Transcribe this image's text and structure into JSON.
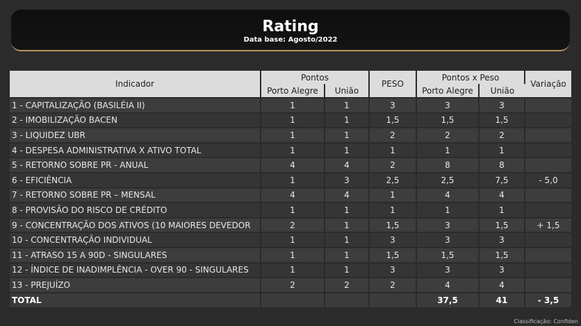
{
  "header": {
    "title": "Rating",
    "subtitle": "Data base: Agosto/2022"
  },
  "table": {
    "headers": {
      "indicador": "Indicador",
      "pontos": "Pontos",
      "peso": "PESO",
      "pontos_x_peso": "Pontos x Peso",
      "variacao": "Variação",
      "porto_alegre": "Porto Alegre",
      "uniao": "União"
    },
    "rows": [
      {
        "indicador": "1 - CAPITALIZAÇÃO (BASILÉIA II)",
        "pa": "1",
        "uniao": "1",
        "peso": "3",
        "pxp_pa": "3",
        "pxp_uniao": "3",
        "variacao": ""
      },
      {
        "indicador": "2 - IMOBILIZAÇÃO BACEN",
        "pa": "1",
        "uniao": "1",
        "peso": "1,5",
        "pxp_pa": "1,5",
        "pxp_uniao": "1,5",
        "variacao": ""
      },
      {
        "indicador": "3 - LIQUIDEZ UBR",
        "pa": "1",
        "uniao": "1",
        "peso": "2",
        "pxp_pa": "2",
        "pxp_uniao": "2",
        "variacao": ""
      },
      {
        "indicador": "4 - DESPESA ADMINISTRATIVA X ATIVO TOTAL",
        "pa": "1",
        "uniao": "1",
        "peso": "1",
        "pxp_pa": "1",
        "pxp_uniao": "1",
        "variacao": ""
      },
      {
        "indicador": "5 - RETORNO SOBRE PR - ANUAL",
        "pa": "4",
        "uniao": "4",
        "peso": "2",
        "pxp_pa": "8",
        "pxp_uniao": "8",
        "variacao": ""
      },
      {
        "indicador": "6 - EFICIÊNCIA",
        "pa": "1",
        "uniao": "3",
        "peso": "2,5",
        "pxp_pa": "2,5",
        "pxp_uniao": "7,5",
        "variacao": "- 5,0"
      },
      {
        "indicador": "7 - RETORNO SOBRE PR – MENSAL",
        "pa": "4",
        "uniao": "4",
        "peso": "1",
        "pxp_pa": "4",
        "pxp_uniao": "4",
        "variacao": ""
      },
      {
        "indicador": "8 - PROVISÃO DO RISCO DE CRÉDITO",
        "pa": "1",
        "uniao": "1",
        "peso": "1",
        "pxp_pa": "1",
        "pxp_uniao": "1",
        "variacao": ""
      },
      {
        "indicador": "9 - CONCENTRAÇÃO DOS ATIVOS (10 MAIORES DEVEDOR",
        "pa": "2",
        "uniao": "1",
        "peso": "1,5",
        "pxp_pa": "3",
        "pxp_uniao": "1,5",
        "variacao": "+ 1,5"
      },
      {
        "indicador": "10 - CONCENTRAÇÃO INDIVIDUAL",
        "pa": "1",
        "uniao": "1",
        "peso": "3",
        "pxp_pa": "3",
        "pxp_uniao": "3",
        "variacao": ""
      },
      {
        "indicador": "11 - ATRASO 15 A 90D - SINGULARES",
        "pa": "1",
        "uniao": "1",
        "peso": "1,5",
        "pxp_pa": "1,5",
        "pxp_uniao": "1,5",
        "variacao": ""
      },
      {
        "indicador": "12 - ÍNDICE DE INADIMPLÊNCIA - OVER 90 - SINGULARES",
        "pa": "1",
        "uniao": "1",
        "peso": "3",
        "pxp_pa": "3",
        "pxp_uniao": "3",
        "variacao": ""
      },
      {
        "indicador": "13 - PREJUÍZO",
        "pa": "2",
        "uniao": "2",
        "peso": "2",
        "pxp_pa": "4",
        "pxp_uniao": "4",
        "variacao": ""
      }
    ],
    "total": {
      "label": "TOTAL",
      "pa": "",
      "uniao": "",
      "peso": "",
      "pxp_pa": "37,5",
      "pxp_uniao": "41",
      "variacao": "- 3,5"
    }
  },
  "footer": {
    "classification": "Classificação: Confiden"
  }
}
